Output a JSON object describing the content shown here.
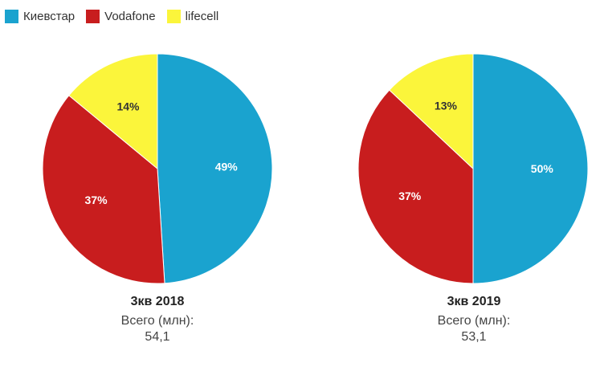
{
  "colors": {
    "kyivstar": "#1aa3cf",
    "vodafone": "#c81d1e",
    "lifecell": "#fbf53b"
  },
  "legend": [
    {
      "name": "Киевстар",
      "color": "#1aa3cf"
    },
    {
      "name": "Vodafone",
      "color": "#c81d1e"
    },
    {
      "name": "lifecell",
      "color": "#fbf53b"
    }
  ],
  "chart_data": [
    {
      "type": "pie",
      "title": "3кв 2018",
      "total_label": "Всего (млн):",
      "total_value": "54,1",
      "slices": [
        {
          "name": "Киевстар",
          "value": 49,
          "label": "49%",
          "color": "#1aa3cf"
        },
        {
          "name": "Vodafone",
          "value": 37,
          "label": "37%",
          "color": "#c81d1e"
        },
        {
          "name": "lifecell",
          "value": 14,
          "label": "14%",
          "color": "#fbf53b"
        }
      ],
      "legend_position": "top-left"
    },
    {
      "type": "pie",
      "title": "3кв 2019",
      "total_label": "Всего (млн):",
      "total_value": "53,1",
      "slices": [
        {
          "name": "Киевстар",
          "value": 50,
          "label": "50%",
          "color": "#1aa3cf"
        },
        {
          "name": "Vodafone",
          "value": 37,
          "label": "37%",
          "color": "#c81d1e"
        },
        {
          "name": "lifecell",
          "value": 13,
          "label": "13%",
          "color": "#fbf53b"
        }
      ],
      "legend_position": "top-left"
    }
  ]
}
